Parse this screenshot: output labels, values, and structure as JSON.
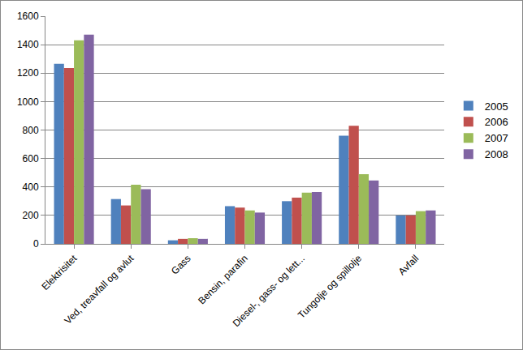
{
  "chart_data": {
    "type": "bar",
    "categories": [
      "Elektrisitet",
      "Ved, treavfall og avlut",
      "Gass",
      "Bensin, parafin",
      "Diesel-, gass- og lett...",
      "Tungolje og spillolje",
      "Avfall"
    ],
    "series": [
      {
        "name": "2005",
        "color": "#4f81bd",
        "values": [
          1265,
          315,
          25,
          265,
          300,
          760,
          200
        ]
      },
      {
        "name": "2006",
        "color": "#c0504d",
        "values": [
          1235,
          270,
          35,
          255,
          325,
          830,
          200
        ]
      },
      {
        "name": "2007",
        "color": "#9bbb59",
        "values": [
          1430,
          415,
          40,
          235,
          360,
          490,
          230
        ]
      },
      {
        "name": "2008",
        "color": "#8064a2",
        "values": [
          1470,
          385,
          35,
          220,
          365,
          445,
          235
        ]
      }
    ],
    "ylim": [
      0,
      1600
    ],
    "yticks": [
      0,
      200,
      400,
      600,
      800,
      1000,
      1200,
      1400,
      1600
    ],
    "grid": true,
    "legend": "right"
  }
}
